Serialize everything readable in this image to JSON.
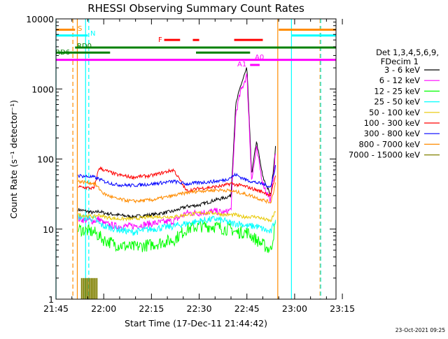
{
  "chart_data": {
    "type": "line",
    "title": "RHESSI Observing Summary Count Rates",
    "xlabel": "Start Time (17-Dec-11 21:44:42)",
    "ylabel": "Count Rate (s⁻¹ detector⁻¹)",
    "x_axis": {
      "range_min": [
        0,
        88
      ],
      "tick_values_min": [
        0,
        15,
        30,
        45,
        60,
        75,
        90
      ],
      "tick_labels": [
        "21:45",
        "22:00",
        "22:15",
        "22:30",
        "22:45",
        "23:00",
        "23:15"
      ]
    },
    "y_axis": {
      "scale": "log",
      "range": [
        1,
        10000
      ],
      "tick_values": [
        1,
        10,
        100,
        1000,
        10000
      ],
      "tick_labels": [
        "1",
        "10",
        "100",
        "1000",
        "10000"
      ]
    },
    "legend": {
      "placement": "right",
      "title_lines": [
        "Det 1,3,4,5,6,9,",
        "FDecim 1"
      ],
      "entries": [
        {
          "label": "3 - 6 keV",
          "color": "#000000"
        },
        {
          "label": "6 - 12 keV",
          "color": "#ff00ff"
        },
        {
          "label": "12 - 25 keV",
          "color": "#00ff00"
        },
        {
          "label": "25 - 50 keV",
          "color": "#00ffff"
        },
        {
          "label": "50 - 100 keV",
          "color": "#e8c800"
        },
        {
          "label": "100 - 300 keV",
          "color": "#ff0000"
        },
        {
          "label": "300 - 800 keV",
          "color": "#0000ff"
        },
        {
          "label": "800 - 7000 keV",
          "color": "#ff8c00"
        },
        {
          "label": "7000 - 15000 keV",
          "color": "#808000"
        }
      ]
    },
    "series": [
      {
        "color": "#000000",
        "x": [
          7,
          12,
          13.5,
          15,
          19,
          24,
          30,
          37,
          41,
          45,
          50,
          53,
          55,
          56.5,
          58,
          60,
          61.5,
          63,
          65,
          67.5,
          69
        ],
        "y": [
          19,
          17,
          18,
          17,
          16,
          15,
          16,
          18,
          21,
          22,
          26,
          28,
          30,
          600,
          1100,
          2000,
          60,
          180,
          55,
          30,
          150
        ]
      },
      {
        "color": "#ff00ff",
        "x": [
          7,
          12,
          13.5,
          15,
          19,
          24,
          30,
          37,
          41,
          45,
          50,
          53,
          55,
          56.5,
          58,
          60,
          61.5,
          63,
          65,
          67.5,
          69
        ],
        "y": [
          14,
          13,
          14,
          12,
          11,
          11,
          12,
          13,
          17,
          17,
          18,
          17,
          19,
          450,
          900,
          1600,
          50,
          140,
          45,
          25,
          120
        ]
      },
      {
        "color": "#00ff00",
        "x": [
          7,
          12,
          13.5,
          15,
          19,
          24,
          30,
          37,
          41,
          45,
          50,
          53,
          55,
          56.5,
          58,
          60,
          61.5,
          63,
          65,
          67.5,
          69
        ],
        "y": [
          10,
          9,
          8,
          7,
          6,
          5.5,
          6,
          7,
          10,
          11,
          11,
          10,
          10,
          9,
          9,
          9,
          8,
          7,
          6,
          5,
          12
        ]
      },
      {
        "color": "#00ffff",
        "x": [
          7,
          12,
          13.5,
          15,
          19,
          24,
          30,
          37,
          41,
          45,
          50,
          53,
          55,
          56.5,
          58,
          60,
          61.5,
          63,
          65,
          67.5,
          69
        ],
        "y": [
          15,
          14,
          12,
          11,
          10,
          9,
          10,
          11,
          12,
          13,
          14,
          13,
          12,
          12,
          12,
          11,
          11,
          11,
          10,
          9,
          14
        ]
      },
      {
        "color": "#e8c800",
        "x": [
          7,
          12,
          13.5,
          15,
          19,
          24,
          30,
          37,
          41,
          45,
          50,
          53,
          55,
          56.5,
          58,
          60,
          61.5,
          63,
          65,
          67.5,
          69
        ],
        "y": [
          16,
          15,
          16,
          15,
          14,
          14,
          15,
          15,
          16,
          17,
          17,
          16,
          16,
          16,
          15,
          15,
          15,
          15,
          14,
          13,
          18
        ]
      },
      {
        "color": "#ff0000",
        "x": [
          7,
          12,
          13.5,
          15,
          19,
          24,
          30,
          37,
          41,
          45,
          50,
          53,
          55,
          56.5,
          58,
          60,
          61.5,
          63,
          65,
          67.5,
          69
        ],
        "y": [
          40,
          38,
          75,
          70,
          60,
          55,
          58,
          70,
          35,
          38,
          40,
          42,
          45,
          43,
          42,
          40,
          38,
          36,
          34,
          30,
          60
        ]
      },
      {
        "color": "#0000ff",
        "x": [
          7,
          12,
          13.5,
          15,
          19,
          24,
          30,
          37,
          41,
          45,
          50,
          53,
          55,
          56.5,
          58,
          60,
          61.5,
          63,
          65,
          67.5,
          69
        ],
        "y": [
          58,
          55,
          52,
          48,
          43,
          42,
          44,
          48,
          44,
          46,
          48,
          50,
          55,
          60,
          55,
          50,
          48,
          46,
          44,
          40,
          80
        ]
      },
      {
        "color": "#ff8c00",
        "x": [
          7,
          12,
          13.5,
          15,
          19,
          24,
          30,
          37,
          41,
          45,
          50,
          53,
          55,
          56.5,
          58,
          60,
          61.5,
          63,
          65,
          67.5,
          69
        ],
        "y": [
          48,
          45,
          38,
          32,
          27,
          25,
          26,
          30,
          33,
          35,
          36,
          36,
          35,
          34,
          33,
          31,
          30,
          28,
          26,
          24,
          45
        ]
      }
    ],
    "event_bars": [
      {
        "label": "S",
        "color": "#ff8c00",
        "y": 7000,
        "segments": [
          [
            0,
            6
          ],
          [
            70,
            88
          ]
        ]
      },
      {
        "label": "N",
        "color": "#00ffff",
        "y": 5800,
        "segments": [
          [
            0,
            10
          ],
          [
            74,
            88
          ]
        ]
      },
      {
        "label": "F",
        "color": "#ff0000",
        "y": 5000,
        "segments": [
          [
            34,
            39
          ],
          [
            43,
            45
          ],
          [
            56,
            65
          ]
        ]
      },
      {
        "label": "RD0",
        "color": "#008000",
        "y": 3900,
        "segments": [
          [
            6,
            88
          ]
        ]
      },
      {
        "label": "RD6",
        "color": "#008000",
        "y": 3300,
        "segments": [
          [
            0,
            17
          ],
          [
            44,
            61
          ]
        ]
      },
      {
        "label": "A1",
        "color": "#ff00ff",
        "y": 2600,
        "segments": [
          [
            0,
            88
          ]
        ]
      },
      {
        "label": "A0",
        "color": "#ff00ff",
        "y": 2200,
        "segments": [
          [
            61,
            64
          ]
        ]
      }
    ],
    "vertical_markers": [
      {
        "x": 5.3,
        "color": "#ff8c00",
        "style": "dashed"
      },
      {
        "x": 6.7,
        "color": "#ff8c00",
        "style": "solid"
      },
      {
        "x": 9.3,
        "color": "#00ffff",
        "style": "solid"
      },
      {
        "x": 10.3,
        "color": "#00ffff",
        "style": "dashed"
      },
      {
        "x": 0,
        "color": "#00ffff",
        "style": "solid"
      },
      {
        "x": 69.7,
        "color": "#ff8c00",
        "style": "solid"
      },
      {
        "x": 74,
        "color": "#00ffff",
        "style": "solid"
      },
      {
        "x": 83,
        "color": "#ff8c00",
        "style": "dashed"
      },
      {
        "x": 83.2,
        "color": "#00ffff",
        "style": "dashed"
      }
    ],
    "high_energy_blocks": {
      "color": "#808000",
      "x_range": [
        8,
        13
      ],
      "y_range": [
        1,
        2
      ]
    },
    "timestamp": "23-Oct-2021 09:25"
  }
}
